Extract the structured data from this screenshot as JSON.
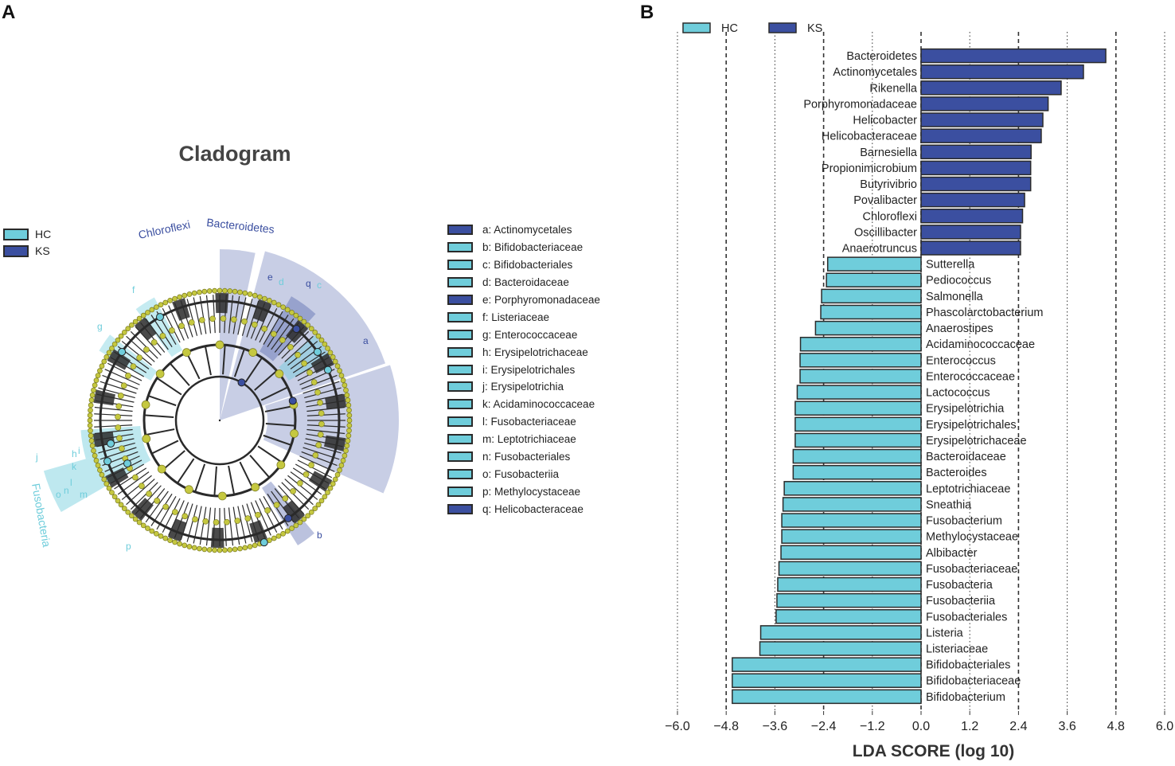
{
  "panel_a_label": "A",
  "panel_b_label": "B",
  "colors": {
    "hc": "#6fcddb",
    "ks": "#3b4fa0",
    "node": "#c5c840",
    "edge": "#2a2a2a"
  },
  "cladogram": {
    "title": "Cladogram",
    "legend": [
      {
        "label": "HC",
        "group": "hc"
      },
      {
        "label": "KS",
        "group": "ks"
      }
    ],
    "highlight_labels": [
      "Chloroflexi",
      "Bacteroidetes",
      "Fusobacteria"
    ],
    "node_letters": [
      "a",
      "b",
      "c",
      "d",
      "e",
      "f",
      "g",
      "h",
      "i",
      "j",
      "k",
      "l",
      "m",
      "n",
      "o",
      "p",
      "q"
    ],
    "key": [
      {
        "label": "a: Actinomycetales",
        "group": "ks"
      },
      {
        "label": "b: Bifidobacteriaceae",
        "group": "hc"
      },
      {
        "label": "c: Bifidobacteriales",
        "group": "hc"
      },
      {
        "label": "d: Bacteroidaceae",
        "group": "hc"
      },
      {
        "label": "e: Porphyromonadaceae",
        "group": "ks"
      },
      {
        "label": "f: Listeriaceae",
        "group": "hc"
      },
      {
        "label": "g: Enterococcaceae",
        "group": "hc"
      },
      {
        "label": "h: Erysipelotrichaceae",
        "group": "hc"
      },
      {
        "label": "i: Erysipelotrichales",
        "group": "hc"
      },
      {
        "label": "j: Erysipelotrichia",
        "group": "hc"
      },
      {
        "label": "k: Acidaminococcaceae",
        "group": "hc"
      },
      {
        "label": "l: Fusobacteriaceae",
        "group": "hc"
      },
      {
        "label": "m: Leptotrichiaceae",
        "group": "hc"
      },
      {
        "label": "n: Fusobacteriales",
        "group": "hc"
      },
      {
        "label": "o: Fusobacteriia",
        "group": "hc"
      },
      {
        "label": "p: Methylocystaceae",
        "group": "hc"
      },
      {
        "label": "q: Helicobacteraceae",
        "group": "ks"
      }
    ]
  },
  "chart_data": {
    "type": "bar",
    "orientation": "horizontal",
    "title": "",
    "xlabel": "LDA SCORE (log 10)",
    "ylabel": "",
    "xlim": [
      -6.0,
      6.0
    ],
    "xticks": [
      "−6.0",
      "−4.8",
      "−3.6",
      "−2.4",
      "−1.2",
      "0.0",
      "1.2",
      "2.4",
      "3.6",
      "4.8",
      "6.0"
    ],
    "grid": true,
    "legend_position": "top-left",
    "series": [
      {
        "name": "HC",
        "color": "#6fcddb"
      },
      {
        "name": "KS",
        "color": "#3b4fa0"
      }
    ],
    "bars": [
      {
        "label": "Bacteroidetes",
        "value": 4.55,
        "group": "KS"
      },
      {
        "label": "Actinomycetales",
        "value": 4.0,
        "group": "KS"
      },
      {
        "label": "Rikenella",
        "value": 3.45,
        "group": "KS"
      },
      {
        "label": "Porphyromonadaceae",
        "value": 3.13,
        "group": "KS"
      },
      {
        "label": "Helicobacter",
        "value": 3.0,
        "group": "KS"
      },
      {
        "label": "Helicobacteraceae",
        "value": 2.96,
        "group": "KS"
      },
      {
        "label": "Barnesiella",
        "value": 2.71,
        "group": "KS"
      },
      {
        "label": "Propionimicrobium",
        "value": 2.7,
        "group": "KS"
      },
      {
        "label": "Butyrivibrio",
        "value": 2.7,
        "group": "KS"
      },
      {
        "label": "Povalibacter",
        "value": 2.55,
        "group": "KS"
      },
      {
        "label": "Chloroflexi",
        "value": 2.5,
        "group": "KS"
      },
      {
        "label": "Oscillibacter",
        "value": 2.45,
        "group": "KS"
      },
      {
        "label": "Anaerotruncus",
        "value": 2.45,
        "group": "KS"
      },
      {
        "label": "Sutterella",
        "value": -2.3,
        "group": "HC"
      },
      {
        "label": "Pediococcus",
        "value": -2.33,
        "group": "HC"
      },
      {
        "label": "Salmonella",
        "value": -2.45,
        "group": "HC"
      },
      {
        "label": "Phascolarctobacterium",
        "value": -2.47,
        "group": "HC"
      },
      {
        "label": "Anaerostipes",
        "value": -2.6,
        "group": "HC"
      },
      {
        "label": "Acidaminococcaceae",
        "value": -2.97,
        "group": "HC"
      },
      {
        "label": "Enterococcus",
        "value": -2.98,
        "group": "HC"
      },
      {
        "label": "Enterococcaceae",
        "value": -2.98,
        "group": "HC"
      },
      {
        "label": "Lactococcus",
        "value": -3.05,
        "group": "HC"
      },
      {
        "label": "Erysipelotrichia",
        "value": -3.1,
        "group": "HC"
      },
      {
        "label": "Erysipelotrichales",
        "value": -3.1,
        "group": "HC"
      },
      {
        "label": "Erysipelotrichaceae",
        "value": -3.1,
        "group": "HC"
      },
      {
        "label": "Bacteroidaceae",
        "value": -3.15,
        "group": "HC"
      },
      {
        "label": "Bacteroides",
        "value": -3.15,
        "group": "HC"
      },
      {
        "label": "Leptotrichiaceae",
        "value": -3.37,
        "group": "HC"
      },
      {
        "label": "Sneathia",
        "value": -3.4,
        "group": "HC"
      },
      {
        "label": "Fusobacterium",
        "value": -3.43,
        "group": "HC"
      },
      {
        "label": "Methylocystaceae",
        "value": -3.43,
        "group": "HC"
      },
      {
        "label": "Albibacter",
        "value": -3.45,
        "group": "HC"
      },
      {
        "label": "Fusobacteriaceae",
        "value": -3.5,
        "group": "HC"
      },
      {
        "label": "Fusobacteria",
        "value": -3.53,
        "group": "HC"
      },
      {
        "label": "Fusobacteriia",
        "value": -3.55,
        "group": "HC"
      },
      {
        "label": "Fusobacteriales",
        "value": -3.57,
        "group": "HC"
      },
      {
        "label": "Listeria",
        "value": -3.95,
        "group": "HC"
      },
      {
        "label": "Listeriaceae",
        "value": -3.97,
        "group": "HC"
      },
      {
        "label": "Bifidobacteriales",
        "value": -4.65,
        "group": "HC"
      },
      {
        "label": "Bifidobacteriaceae",
        "value": -4.65,
        "group": "HC"
      },
      {
        "label": "Bifidobacterium",
        "value": -4.65,
        "group": "HC"
      }
    ]
  }
}
